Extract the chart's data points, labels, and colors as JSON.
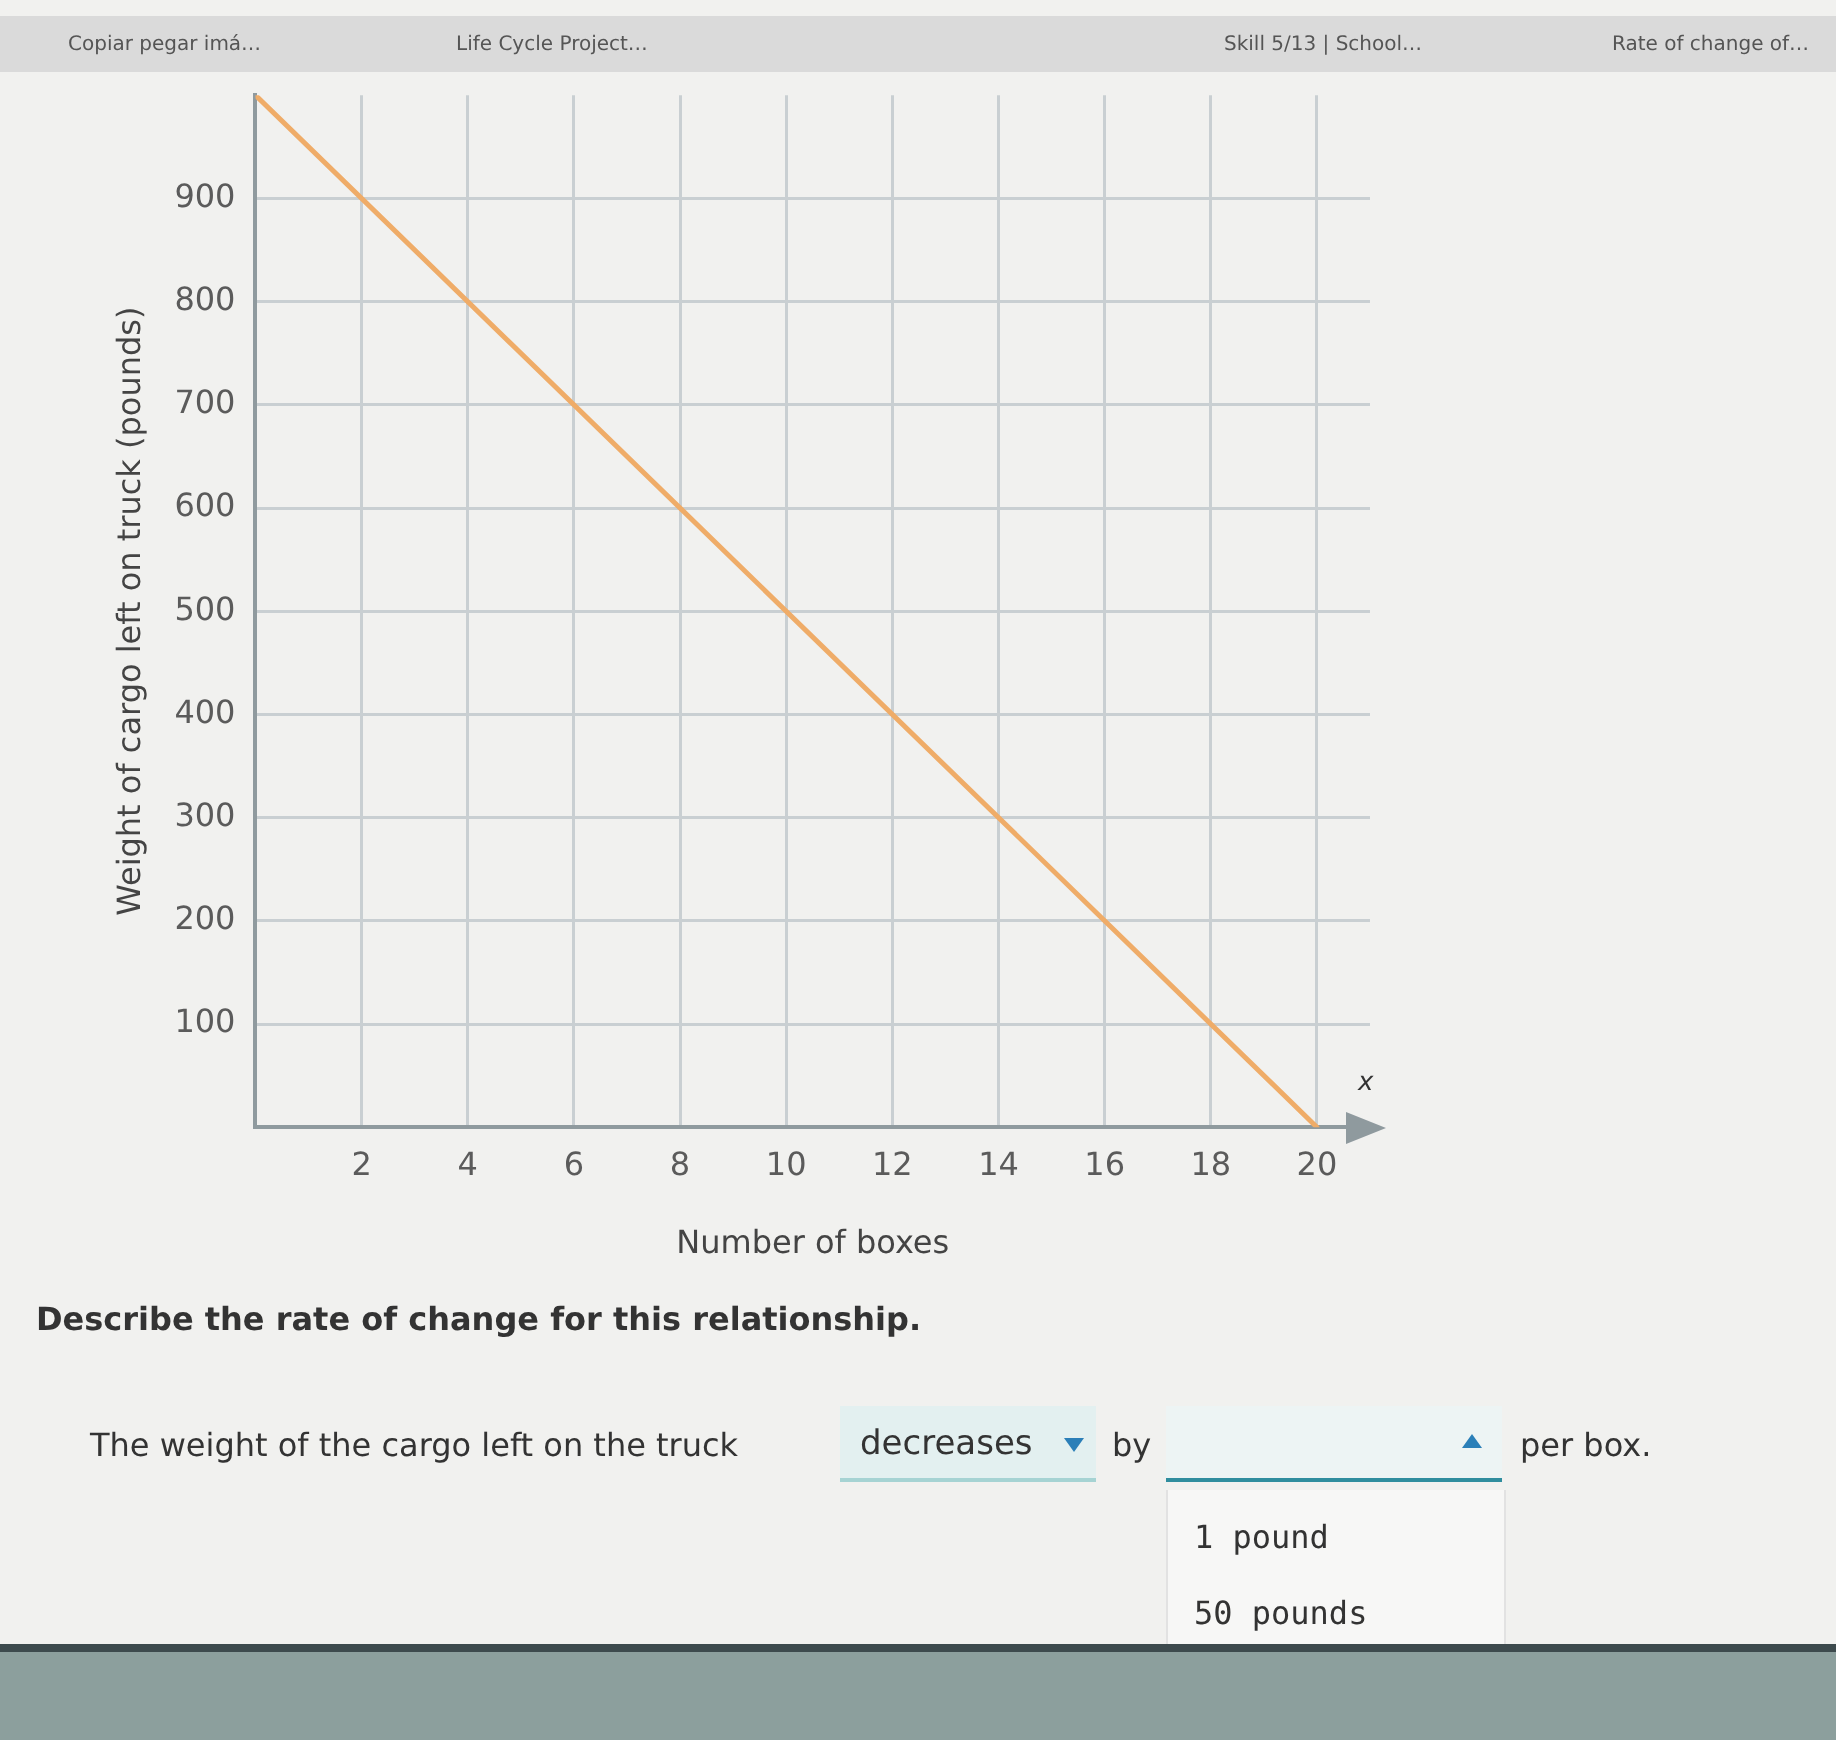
{
  "chart_data": {
    "type": "line",
    "xlabel": "Number of boxes",
    "ylabel": "Weight of cargo left on truck (pounds)",
    "x": [
      0,
      20
    ],
    "series": [
      {
        "color": "#efac68",
        "values": [
          1000,
          0
        ]
      }
    ],
    "xlim": [
      0,
      21
    ],
    "xticks": [
      2,
      4,
      6,
      8,
      10,
      12,
      14,
      16,
      18,
      20
    ],
    "ylim": [
      0,
      1000
    ],
    "yticks": [
      100,
      200,
      300,
      400,
      500,
      600,
      700,
      800,
      900
    ],
    "grid": true,
    "legend": false,
    "marker": "none",
    "annotations": [
      "Copiar pegar imá…",
      "Life Cycle Project…",
      "Skill 5/13 | School…",
      "Rate of change of…",
      "x",
      "Describe the rate of change for this relationship.",
      "The weight of the cargo left on the truck",
      "decreases",
      "by",
      "per box.",
      "1 pound",
      "50 pounds"
    ]
  }
}
